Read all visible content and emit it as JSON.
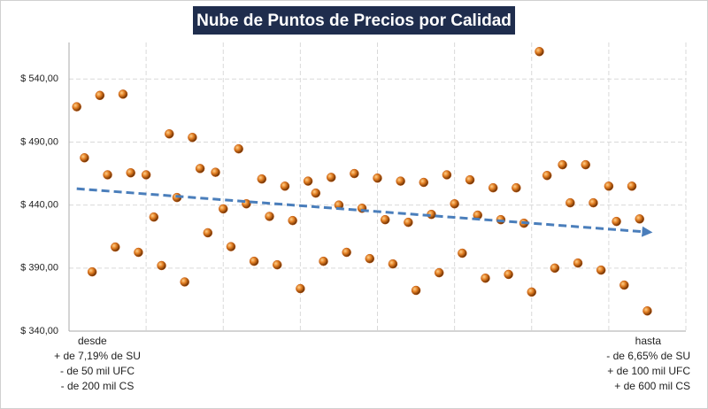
{
  "chart_data": {
    "type": "scatter",
    "title": "Nube de Puntos de Precios por Calidad",
    "x": [
      1,
      2,
      3,
      4,
      5,
      6,
      7,
      8,
      9,
      10,
      11,
      12,
      13,
      14,
      15,
      16,
      17,
      18,
      19,
      20,
      21,
      22,
      23,
      24,
      25,
      26,
      27,
      28,
      29,
      30,
      31,
      32,
      33,
      34,
      35,
      36,
      37,
      38,
      39,
      40,
      41,
      42,
      43,
      44,
      45,
      46,
      47,
      48,
      49,
      50,
      51,
      52,
      53,
      54,
      55,
      56,
      57,
      58,
      59,
      60,
      61,
      62,
      63,
      64,
      65,
      66,
      67,
      68,
      69,
      70,
      71,
      72,
      73,
      74,
      75
    ],
    "values": [
      518,
      477.5,
      387,
      527,
      464,
      406.7,
      528,
      465.6,
      402.5,
      464,
      430.5,
      392,
      496.5,
      446,
      379,
      493.7,
      469,
      418,
      466,
      437,
      407,
      484.6,
      441,
      395.4,
      460.7,
      431,
      392.6,
      455,
      427.7,
      373.7,
      459,
      449.5,
      395.4,
      462,
      440,
      402.5,
      465,
      437.5,
      397.5,
      461.4,
      428.4,
      393.3,
      459,
      426.3,
      372.3,
      458,
      432.6,
      386.3,
      464,
      441,
      401.8,
      460,
      432,
      382,
      453.7,
      428.4,
      385,
      453.7,
      425.6,
      371,
      561.8,
      463.5,
      390,
      472,
      441.8,
      394,
      472,
      441.8,
      388.4,
      455,
      427,
      376.5,
      455,
      429,
      356
    ],
    "color": "#c55a11",
    "xlim": [
      0,
      80
    ],
    "xticks": [
      0,
      10,
      20,
      30,
      40,
      50,
      60,
      70,
      80
    ],
    "ylim": [
      340,
      569
    ],
    "yticks": [
      {
        "value": 340,
        "label": "$ 340,00"
      },
      {
        "value": 390,
        "label": "$ 390,00"
      },
      {
        "value": 440,
        "label": "$ 440,00"
      },
      {
        "value": 490,
        "label": "$ 490,00"
      },
      {
        "value": 540,
        "label": "$ 540,00"
      }
    ],
    "grid": true,
    "trendline": {
      "x": [
        1,
        75
      ],
      "values": [
        453,
        418.6
      ],
      "color": "#4a7ebb"
    },
    "annotations": {
      "left": [
        "desde",
        "+ de 7,19% de SU",
        "- de 50 mil UFC",
        "- de 200 mil CS"
      ],
      "right": [
        "hasta",
        "- de 6,65% de SU",
        "+ de 100 mil UFC",
        "+ de 600 mil CS"
      ]
    }
  }
}
